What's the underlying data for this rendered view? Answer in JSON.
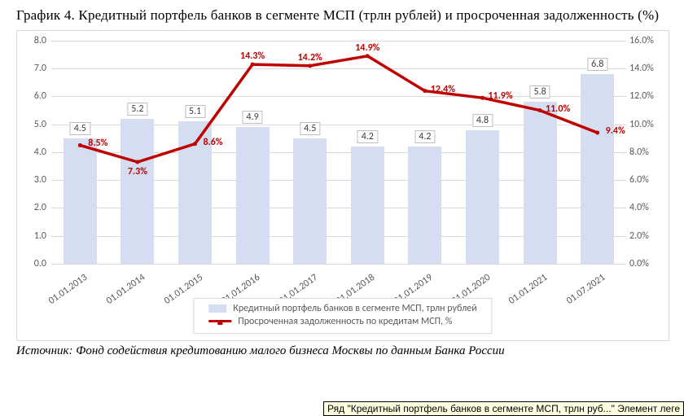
{
  "title_line": "График 4. Кредитный портфель банков в сегменте МСП (трлн рублей) и просроченная задолженность (%)",
  "source_line": "Источник: Фонд содействия кредитованию малого бизнеса Москвы по данным Банка России",
  "tooltip_text": "Ряд \"Кредитный портфель банков в сегменте МСП, трлн руб...\" Элемент леге",
  "chart": {
    "type": "bar+line",
    "background_color": "#ffffff",
    "border_color": "#d9d9d9",
    "grid_color": "#d9d9d9",
    "categories": [
      "01.01.2013",
      "01.01.2014",
      "01.01.2015",
      "01.01.2016",
      "01.01.2017",
      "01.01.2018",
      "01.01.2019",
      "01.01.2020",
      "01.01.2021",
      "01.07.2021"
    ],
    "x_label_rotation_deg": -35,
    "x_label_fontsize": 12,
    "left_axis": {
      "min": 0.0,
      "max": 8.0,
      "step": 1.0,
      "labels": [
        "0.0",
        "1.0",
        "2.0",
        "3.0",
        "4.0",
        "5.0",
        "6.0",
        "7.0",
        "8.0"
      ],
      "fontsize": 12,
      "color": "#595959"
    },
    "right_axis": {
      "min": 0.0,
      "max": 16.0,
      "step": 2.0,
      "labels": [
        "0.0%",
        "2.0%",
        "4.0%",
        "6.0%",
        "8.0%",
        "10.0%",
        "12.0%",
        "14.0%",
        "16.0%"
      ],
      "fontsize": 12,
      "color": "#595959"
    },
    "bars": {
      "values": [
        4.5,
        5.2,
        5.1,
        4.9,
        4.5,
        4.2,
        4.2,
        4.8,
        5.8,
        6.8
      ],
      "labels": [
        "4.5",
        "5.2",
        "5.1",
        "4.9",
        "4.5",
        "4.2",
        "4.2",
        "4.8",
        "5.8",
        "6.8"
      ],
      "color": "#d5def0",
      "bar_width_frac": 0.58,
      "label_border_color": "#bfbfbf",
      "label_fontsize": 12,
      "label_color": "#404040"
    },
    "line": {
      "values_pct": [
        8.5,
        7.3,
        8.6,
        14.3,
        14.2,
        14.9,
        12.4,
        11.9,
        11.0,
        9.4
      ],
      "labels": [
        "8.5%",
        "7.3%",
        "8.6%",
        "14.3%",
        "14.2%",
        "14.9%",
        "12.4%",
        "11.9%",
        "11.0%",
        "9.4%"
      ],
      "color": "#c00000",
      "stroke_width": 3.5,
      "marker": "circle",
      "marker_size": 5,
      "label_fontsize": 12,
      "label_weight": 700,
      "label_positions": [
        "right",
        "below",
        "right",
        "above",
        "above",
        "above",
        "right",
        "right",
        "right",
        "right"
      ]
    },
    "legend": {
      "border_color": "#d9d9d9",
      "fontsize": 12,
      "color": "#595959",
      "bar_label": "Кредитный портфель банков в сегменте МСП, трлн рублей",
      "line_label": "Просроченная задолженность по кредитам МСП, %"
    }
  }
}
